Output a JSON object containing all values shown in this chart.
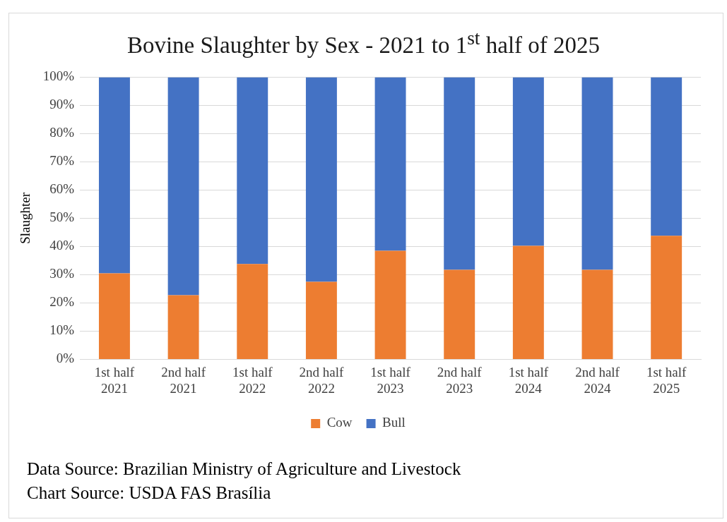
{
  "chart_data": {
    "type": "bar",
    "stacked": true,
    "title": "Bovine Slaughter by Sex - 2021 to 1$^{st}$ half of 2025",
    "ylabel": "Slaughter",
    "categories": [
      "1st half 2021",
      "2nd half 2021",
      "1st half 2022",
      "2nd half 2022",
      "1st half 2023",
      "2nd half 2023",
      "1st half 2024",
      "2nd half 2024",
      "1st half 2025"
    ],
    "series": [
      {
        "name": "Cow",
        "color": "#ed7d31",
        "values": [
          30.5,
          22.7,
          33.8,
          27.5,
          38.5,
          31.7,
          40.2,
          31.7,
          43.8
        ]
      },
      {
        "name": "Bull",
        "color": "#4472c4",
        "values": [
          69.5,
          77.3,
          66.2,
          72.5,
          61.5,
          68.3,
          59.8,
          68.3,
          56.2
        ]
      }
    ],
    "ylim": [
      0,
      100
    ],
    "yticks": [
      {
        "value": 0,
        "label": "0%"
      },
      {
        "value": 10,
        "label": "10%"
      },
      {
        "value": 20,
        "label": "20%"
      },
      {
        "value": 30,
        "label": "30%"
      },
      {
        "value": 40,
        "label": "40%"
      },
      {
        "value": 50,
        "label": "50%"
      },
      {
        "value": 60,
        "label": "60%"
      },
      {
        "value": 70,
        "label": "70%"
      },
      {
        "value": 80,
        "label": "80%"
      },
      {
        "value": 90,
        "label": "90%"
      },
      {
        "value": 100,
        "label": "100%"
      }
    ],
    "grid": "y",
    "legend": "bottom",
    "annotations": [
      "Data Source: Brazilian Ministry of Agriculture and Livestock",
      "Chart Source: USDA FAS Brasília"
    ]
  }
}
